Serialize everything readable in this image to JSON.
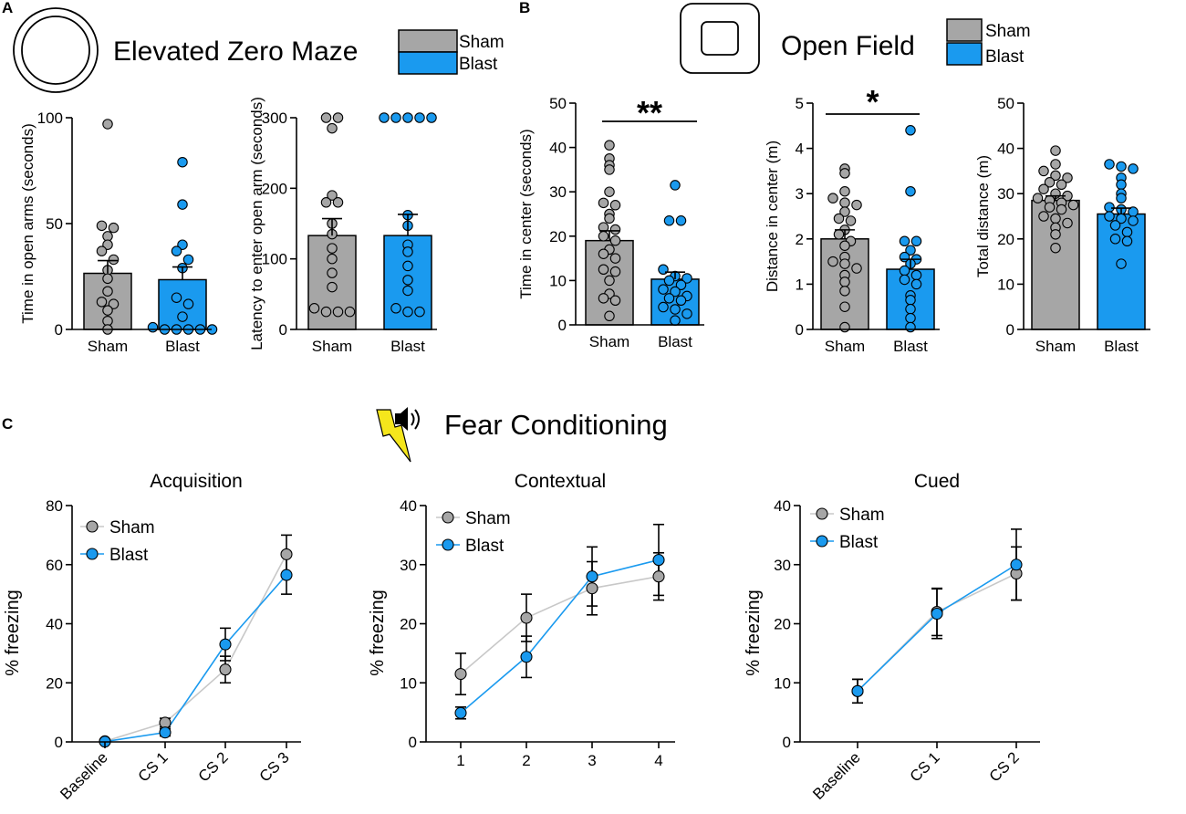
{
  "colors": {
    "sham": "#a6a6a6",
    "blast": "#1a9aef",
    "sham_point": "#a6a6a6",
    "outline": "#000000",
    "sham_line": "#c8c8c8"
  },
  "panel_labels": {
    "a": "A",
    "b": "B",
    "c": "C"
  },
  "titles": {
    "ezm": "Elevated Zero Maze",
    "open_field": "Open Field",
    "fear": "Fear Conditioning"
  },
  "legends": {
    "ezm": {
      "sham": "Sham",
      "blast": "Blast"
    },
    "of": {
      "sham": "Sham",
      "blast": "Blast"
    }
  },
  "icons": {
    "ezm": "ring-maze-icon",
    "of": "open-field-box-icon",
    "fear": "shock-speaker-icon"
  },
  "chart_data": [
    {
      "id": "ezm_time",
      "type": "bar",
      "ylabel": "Time in open arms (seconds)",
      "ylim": [
        0,
        100
      ],
      "yticks": [
        0,
        50,
        100
      ],
      "categories": [
        "Sham",
        "Blast"
      ],
      "values": [
        26.5,
        23.5
      ],
      "sem": [
        6,
        6
      ],
      "points": [
        [
          97,
          49,
          48,
          44,
          40,
          37,
          33,
          28,
          24,
          18,
          13,
          12,
          9,
          4,
          0
        ],
        [
          79,
          59,
          40,
          37,
          33,
          29,
          15,
          12,
          6,
          1,
          0,
          0,
          0,
          0,
          0
        ]
      ]
    },
    {
      "id": "ezm_latency",
      "type": "bar",
      "ylabel": "Latency to enter open arm (seconds)",
      "ylim": [
        0,
        300
      ],
      "yticks": [
        0,
        100,
        200,
        300
      ],
      "categories": [
        "Sham",
        "Blast"
      ],
      "values": [
        133,
        133
      ],
      "sem": [
        24,
        30
      ],
      "points": [
        [
          300,
          300,
          285,
          190,
          180,
          180,
          150,
          135,
          115,
          100,
          80,
          60,
          30,
          25,
          25,
          25
        ],
        [
          300,
          300,
          300,
          300,
          300,
          162,
          147,
          120,
          110,
          90,
          70,
          55,
          30,
          25,
          25
        ]
      ]
    },
    {
      "id": "of_time_center",
      "type": "bar",
      "ylabel": "Time in center (seconds)",
      "ylim": [
        0,
        50
      ],
      "yticks": [
        0,
        10,
        20,
        30,
        40,
        50
      ],
      "categories": [
        "Sham",
        "Blast"
      ],
      "values": [
        19,
        10.3
      ],
      "sem": [
        2.2,
        1.6
      ],
      "significance": "**",
      "points": [
        [
          40.5,
          37.5,
          36,
          35,
          30,
          27.5,
          27,
          25,
          24,
          22,
          21.5,
          20,
          19,
          17,
          16,
          15,
          12.5,
          12,
          10,
          7,
          6,
          5.5,
          2
        ],
        [
          31.5,
          23.5,
          23.5,
          12.5,
          11,
          10.5,
          10,
          9,
          8,
          7.5,
          6.5,
          6,
          5.5,
          4,
          3.5,
          2.5,
          1
        ]
      ]
    },
    {
      "id": "of_distance_center",
      "type": "bar",
      "ylabel": "Distance in center (m)",
      "ylim": [
        0,
        5
      ],
      "yticks": [
        0,
        1,
        2,
        3,
        4,
        5
      ],
      "categories": [
        "Sham",
        "Blast"
      ],
      "values": [
        2.0,
        1.33
      ],
      "sem": [
        0.2,
        0.22
      ],
      "significance": "*",
      "points": [
        [
          3.55,
          3.45,
          3.05,
          2.9,
          2.8,
          2.75,
          2.6,
          2.45,
          2.4,
          2.2,
          2.1,
          1.95,
          1.85,
          1.6,
          1.5,
          1.45,
          1.35,
          1.2,
          1.05,
          0.85,
          0.5,
          0.05
        ],
        [
          4.4,
          3.05,
          1.95,
          1.95,
          1.75,
          1.6,
          1.55,
          1.45,
          1.3,
          1.2,
          1.1,
          1.0,
          0.75,
          0.65,
          0.45,
          0.25,
          0.05
        ]
      ]
    },
    {
      "id": "of_total_distance",
      "type": "bar",
      "ylabel": "Total distance (m)",
      "ylim": [
        0,
        50
      ],
      "yticks": [
        0,
        10,
        20,
        30,
        40,
        50
      ],
      "categories": [
        "Sham",
        "Blast"
      ],
      "values": [
        28.5,
        25.5
      ],
      "sem": [
        1.0,
        1.3
      ],
      "points": [
        [
          39.5,
          36.5,
          35,
          34,
          33.5,
          32.5,
          32,
          31,
          30,
          29.5,
          29,
          28.5,
          28,
          27.5,
          27,
          26.5,
          25,
          24.5,
          23.5,
          22.5,
          21,
          18
        ],
        [
          36.5,
          36,
          35.5,
          33.5,
          32,
          30,
          29,
          27,
          26.5,
          26,
          25,
          24.5,
          24,
          23,
          21.5,
          20,
          19.5,
          14.5
        ]
      ]
    },
    {
      "id": "fear_acquisition",
      "type": "line",
      "title": "Acquisition",
      "ylabel": "% freezing",
      "ylim": [
        0,
        80
      ],
      "yticks": [
        0,
        20,
        40,
        60,
        80
      ],
      "categories": [
        "Baseline",
        "CS 1",
        "CS 2",
        "CS 3"
      ],
      "series": [
        {
          "name": "Sham",
          "values": [
            0.2,
            6.5,
            24.5,
            63.5
          ],
          "sem": [
            0.2,
            1.5,
            4.5,
            6.5
          ]
        },
        {
          "name": "Blast",
          "values": [
            0.1,
            3.2,
            33,
            56.5
          ],
          "sem": [
            0.1,
            1.2,
            5.5,
            6.5
          ]
        }
      ]
    },
    {
      "id": "fear_contextual",
      "type": "line",
      "title": "Contextual",
      "ylabel": "% freezing",
      "ylim": [
        0,
        40
      ],
      "yticks": [
        0,
        10,
        20,
        30,
        40
      ],
      "categories": [
        "1",
        "2",
        "3",
        "4"
      ],
      "series": [
        {
          "name": "Sham",
          "values": [
            11.5,
            21,
            26,
            28
          ],
          "sem": [
            3.5,
            4,
            4.5,
            4
          ]
        },
        {
          "name": "Blast",
          "values": [
            4.9,
            14.4,
            28,
            30.8
          ],
          "sem": [
            1,
            3.5,
            5,
            6
          ]
        }
      ]
    },
    {
      "id": "fear_cued",
      "type": "line",
      "title": "Cued",
      "ylabel": "% freezing",
      "ylim": [
        0,
        40
      ],
      "yticks": [
        0,
        10,
        20,
        30,
        40
      ],
      "categories": [
        "Baseline",
        "CS 1",
        "CS 2"
      ],
      "series": [
        {
          "name": "Sham",
          "values": [
            8.6,
            22,
            28.5
          ],
          "sem": [
            2,
            4,
            4.5
          ]
        },
        {
          "name": "Blast",
          "values": [
            8.6,
            21.7,
            30
          ],
          "sem": [
            2,
            4.2,
            6
          ]
        }
      ]
    }
  ]
}
